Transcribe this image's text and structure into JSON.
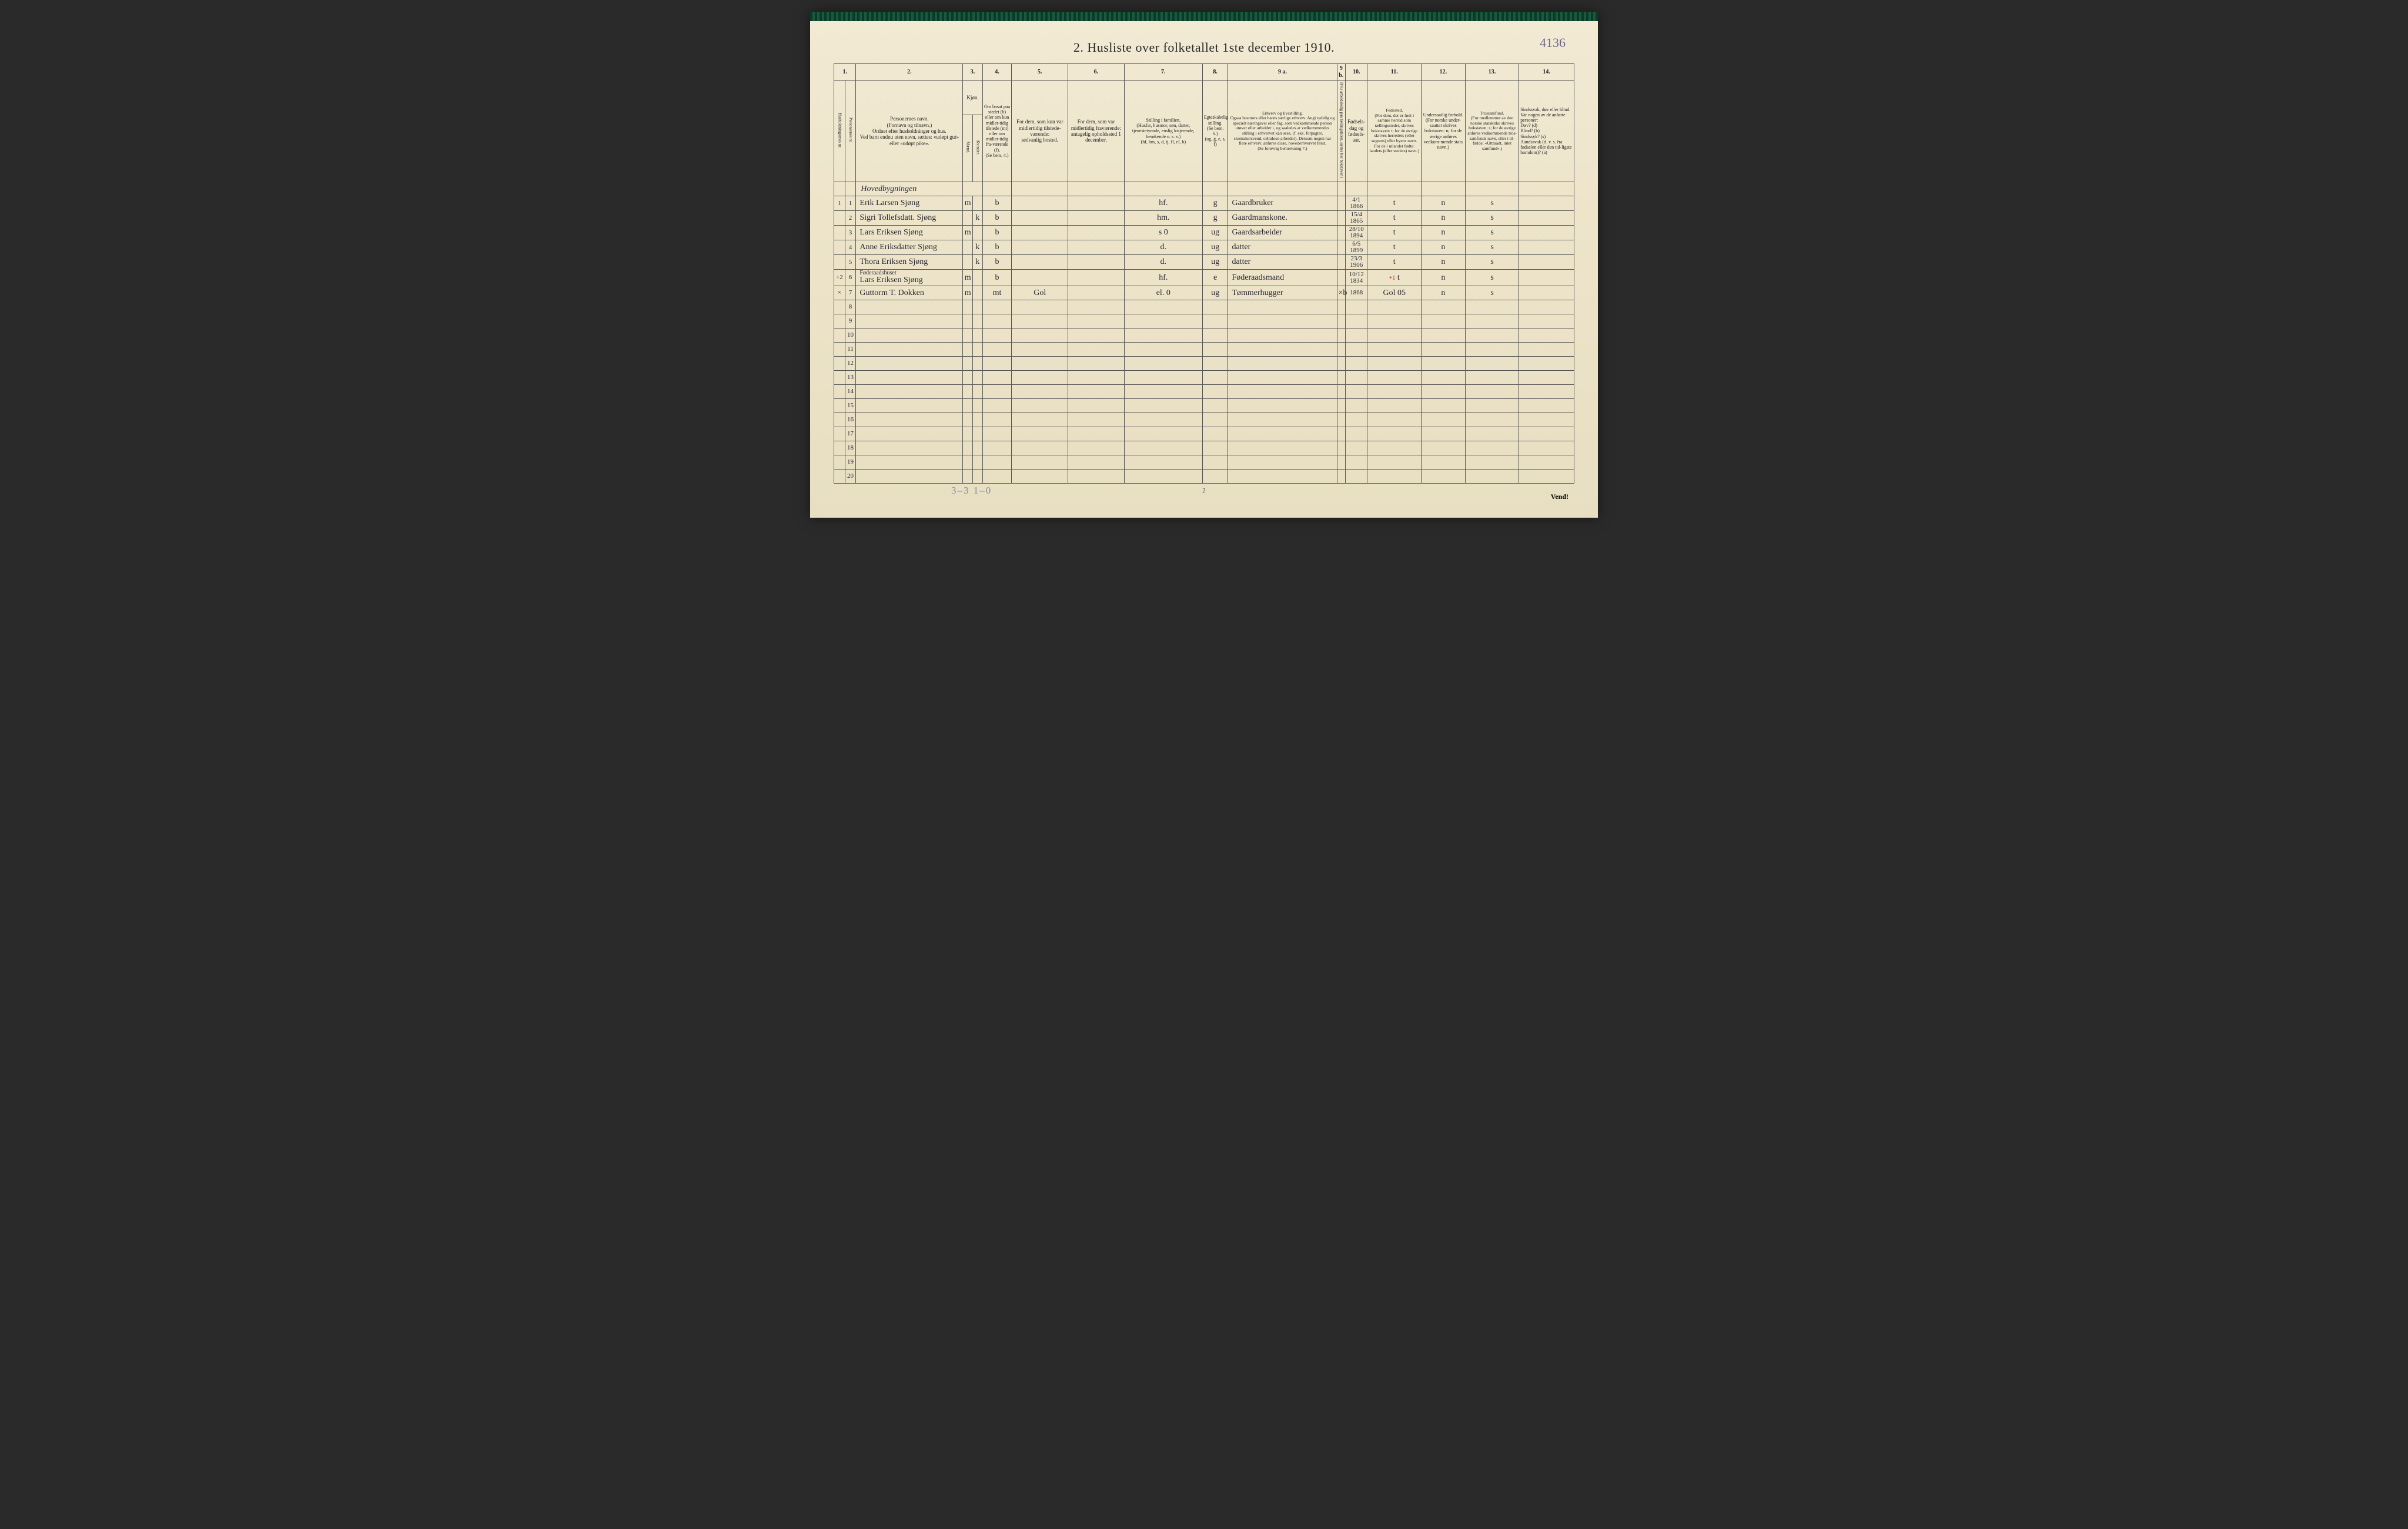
{
  "page": {
    "title": "2.  Husliste over folketallet 1ste december 1910.",
    "annotation_top_right": "4136",
    "footer_pencil": "3–3   1–0",
    "page_number": "2",
    "vend": "Vend!",
    "background_color": "#ede4ca",
    "border_color": "#555555",
    "ink_color": "#2a2a35",
    "red_ink": "#b03020",
    "pencil_color": "#8a8aa0"
  },
  "column_numbers": [
    "1.",
    "2.",
    "3.",
    "4.",
    "5.",
    "6.",
    "7.",
    "8.",
    "9 a.",
    "9 b.",
    "10.",
    "11.",
    "12.",
    "13.",
    "14."
  ],
  "headers": {
    "c1a": "Husholdningernes nr.",
    "c1b": "Personernes nr.",
    "c2": "Personernes navn.\n(Fornavn og tilnavn.)\nOrdnet efter husholdninger og hus.\nVed barn endnu uten navn, sættes: «udøpt gut» eller «udøpt pike».",
    "c3": "Kjøn.",
    "c3a": "Mænd.",
    "c3b": "Kvinder.",
    "c3foot": "m.  k.",
    "c4": "Om bosat paa stedet (b) eller om kun midler-tidig tilstede (mt) eller om midler-tidig fra-værende (f).\n(Se bem. 4.)",
    "c5": "For dem, som kun var midlertidig tilstede-værende:\nsedvanlig bosted.",
    "c6": "For dem, som var midlertidig fraværende:\nantagelig opholdssted 1 december.",
    "c7": "Stilling i familien.\n(Husfar, husmor, søn, datter, tjenestetyende, enslig losjerende, besøkende o. s. v.)\n(hf, hm, s, d, tj, fl, el, b)",
    "c8": "Egteskabelig stilling.\n(Se bem. 6.)\n(ug, g, e, s, f)",
    "c9a": "Erhverv og livsstilling.\nOgsaa husmors eller barns særlige erhverv. Angi tydelig og specielt næringsvei eller fag, som vedkommende person utøver eller arbeider i, og saaledes at vedkommendes stilling i erhvervet kan sees, (f. eks. forpagter, skomakersvend, cellulose-arbeider). Dersom nogen har flere erhverv, anføres disse, hovederhvervet først.\n(Se forøvrig bemerkning 7.)",
    "c9b": "Hvis arbeidsledig paa tællingstiden, sættes her bokstaven l",
    "c10": "Fødsels-dag og fødsels-aar.",
    "c11": "Fødested.\n(For dem, der er født i samme herred som tællingsstedet, skrives bokstaven: t; for de øvrige skrives herredets (eller sognets) eller byens navn. For de i utlandet fødte: landets (eller stedets) navn.)",
    "c12": "Undersaatlig forhold.\n(For norske under-saatter skrives bokstaven: n; for de øvrige anføres vedkom-mende stats navn.)",
    "c13": "Trossamfund.\n(For medlemmer av den norske statskirke skrives bokstaven: s; for de øvrige anføres vedkommende tros-samfunds navn, eller i til-fælde: «Uttraadt, intet samfund».)",
    "c14": "Sindssvak, døv eller blind.\nVar nogen av de anførte personer:\nDøv?     (d)\nBlind?    (b)\nSindssyk? (s)\nAandssvak (d. v. s. fra fødselen eller den tid-ligste barndom)? (a)"
  },
  "section_label_1": "Hovedbygningen",
  "section_label_2": "Føderaadshuset",
  "rows": [
    {
      "hh": "1",
      "pn": "1",
      "name": "Erik Larsen Sjøng",
      "sex": "m",
      "bosat": "b",
      "present": "",
      "absent": "",
      "fam": "hf.",
      "marital": "g",
      "occ": "Gaardbruker",
      "led": "",
      "dob": "4/1 1866",
      "born": "t",
      "nat": "n",
      "rel": "s",
      "dis": ""
    },
    {
      "hh": "",
      "pn": "2",
      "name": "Sigri Tollefsdatt. Sjøng",
      "sex": "k",
      "bosat": "b",
      "present": "",
      "absent": "",
      "fam": "hm.",
      "marital": "g",
      "occ": "Gaardmanskone.",
      "led": "",
      "dob": "15/4 1865",
      "born": "t",
      "nat": "n",
      "rel": "s",
      "dis": ""
    },
    {
      "hh": "",
      "pn": "3",
      "name": "Lars Eriksen Sjøng",
      "sex": "m",
      "bosat": "b",
      "present": "",
      "absent": "",
      "fam": "s   0",
      "marital": "ug",
      "occ": "Gaardsarbeider",
      "led": "",
      "dob": "28/10 1894",
      "born": "t",
      "nat": "n",
      "rel": "s",
      "dis": ""
    },
    {
      "hh": "",
      "pn": "4",
      "name": "Anne Eriksdatter Sjøng",
      "sex": "k",
      "bosat": "b",
      "present": "",
      "absent": "",
      "fam": "d.",
      "marital": "ug",
      "occ": "datter",
      "led": "",
      "dob": "6/5 1899",
      "born": "t",
      "nat": "n",
      "rel": "s",
      "dis": ""
    },
    {
      "hh": "",
      "pn": "5",
      "name": "Thora Eriksen Sjøng",
      "sex": "k",
      "bosat": "b",
      "present": "",
      "absent": "",
      "fam": "d.",
      "marital": "ug",
      "occ": "datter",
      "led": "",
      "dob": "23/3 1906",
      "born": "t",
      "nat": "n",
      "rel": "s",
      "dis": ""
    },
    {
      "hh": "2",
      "pn": "6",
      "name": "Lars Eriksen Sjøng",
      "sex": "m",
      "bosat": "b",
      "present": "",
      "absent": "",
      "fam": "hf.",
      "marital": "e",
      "occ": "Føderaadsmand",
      "led": "",
      "dob": "10/12 1834",
      "born": "t",
      "nat": "n",
      "rel": "s",
      "dis": ""
    },
    {
      "hh": "×",
      "pn": "7",
      "name": "Guttorm T. Dokken",
      "sex": "m",
      "bosat": "mt",
      "present": "Gol",
      "absent": "",
      "fam": "el.   0",
      "marital": "ug",
      "occ": "Tømmerhugger",
      "led": "×b",
      "dob": "1868",
      "born": "Gol  05",
      "nat": "n",
      "rel": "s",
      "dis": ""
    }
  ],
  "empty_row_numbers": [
    "8",
    "9",
    "10",
    "11",
    "12",
    "13",
    "14",
    "15",
    "16",
    "17",
    "18",
    "19",
    "20"
  ],
  "red_annotations": {
    "row6_plus": "+",
    "row6_hh": "",
    "col11_row6_plus1": "+1"
  }
}
